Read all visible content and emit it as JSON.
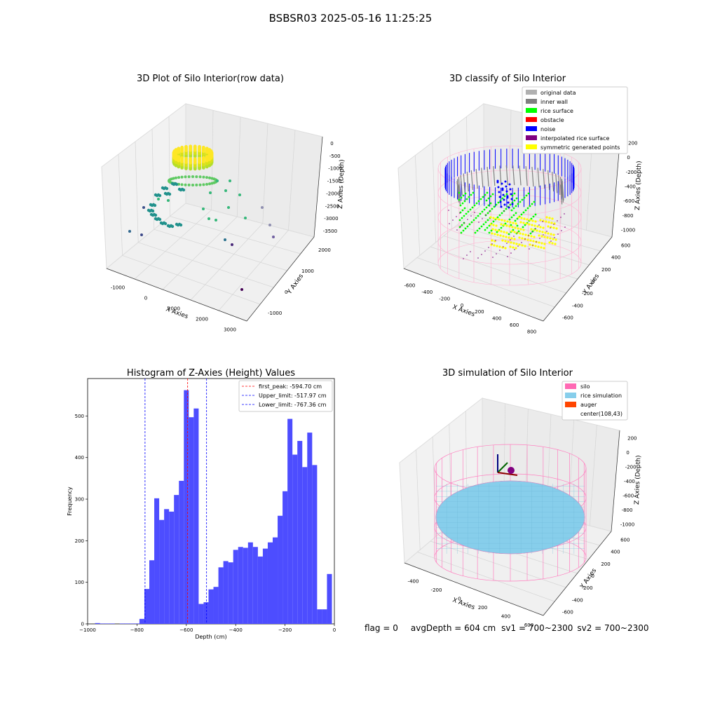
{
  "suptitle": "BSBSR03 2025-05-16 11:25:25",
  "chart_data": [
    {
      "type": "scatter",
      "projection": "3d",
      "title": "3D Plot of Silo Interior(row data)",
      "xlabel": "X Axies",
      "ylabel": "Y Axies",
      "zlabel": "Z Axies (Depth)",
      "x_ticks": [
        "-1000",
        "0",
        "1000",
        "2000",
        "3000"
      ],
      "y_ticks": [
        "-1000",
        "0",
        "1000",
        "2000"
      ],
      "z_ticks": [
        "0",
        "-500",
        "-1000",
        "-1500",
        "-2000",
        "-2500",
        "-3000",
        "-3500"
      ],
      "colormap": "viridis"
    },
    {
      "type": "scatter",
      "projection": "3d",
      "title": "3D classify of Silo Interior",
      "xlabel": "X Axies",
      "ylabel": "Y Axies",
      "zlabel": "Z Axies (Depth)",
      "x_ticks": [
        "-600",
        "-400",
        "-200",
        "0",
        "200",
        "400",
        "600",
        "800"
      ],
      "y_ticks": [
        "-600",
        "-400",
        "-200",
        "0",
        "200",
        "400",
        "600"
      ],
      "z_ticks": [
        "200",
        "0",
        "-200",
        "-400",
        "-600",
        "-800",
        "-1000"
      ],
      "legend_position": "top-right",
      "legend": [
        {
          "label": "original data",
          "color": "#b0b0b0"
        },
        {
          "label": "inner wall",
          "color": "#808080"
        },
        {
          "label": "rice surface",
          "color": "#00ff00"
        },
        {
          "label": "obstacle",
          "color": "#ff0000"
        },
        {
          "label": "noise",
          "color": "#0000ff"
        },
        {
          "label": "interpolated rice surface",
          "color": "#800080"
        },
        {
          "label": "symmetric generated points",
          "color": "#ffff00"
        }
      ]
    },
    {
      "type": "bar",
      "title": "Histogram of Z-Axies (Height) Values",
      "xlabel": "Depth (cm)",
      "ylabel": "Frequency",
      "xlim": [
        -1000,
        0
      ],
      "ylim": [
        0,
        590
      ],
      "x_ticks": [
        -1000,
        -800,
        -600,
        -400,
        -200,
        0
      ],
      "y_ticks": [
        0,
        100,
        200,
        300,
        400,
        500
      ],
      "bin_width": 20,
      "bar_color": "#4d4dff",
      "bins": [
        {
          "x": -960,
          "count": 2
        },
        {
          "x": -940,
          "count": 1
        },
        {
          "x": -920,
          "count": 1
        },
        {
          "x": -900,
          "count": 1
        },
        {
          "x": -860,
          "count": 1
        },
        {
          "x": -840,
          "count": 1
        },
        {
          "x": -820,
          "count": 1
        },
        {
          "x": -800,
          "count": 1
        },
        {
          "x": -780,
          "count": 12
        },
        {
          "x": -760,
          "count": 84
        },
        {
          "x": -740,
          "count": 153
        },
        {
          "x": -720,
          "count": 302
        },
        {
          "x": -700,
          "count": 250
        },
        {
          "x": -680,
          "count": 276
        },
        {
          "x": -660,
          "count": 270
        },
        {
          "x": -640,
          "count": 310
        },
        {
          "x": -620,
          "count": 344
        },
        {
          "x": -600,
          "count": 562
        },
        {
          "x": -580,
          "count": 497
        },
        {
          "x": -560,
          "count": 518
        },
        {
          "x": -540,
          "count": 48
        },
        {
          "x": -520,
          "count": 52
        },
        {
          "x": -500,
          "count": 83
        },
        {
          "x": -480,
          "count": 89
        },
        {
          "x": -460,
          "count": 136
        },
        {
          "x": -440,
          "count": 151
        },
        {
          "x": -420,
          "count": 148
        },
        {
          "x": -400,
          "count": 178
        },
        {
          "x": -380,
          "count": 185
        },
        {
          "x": -360,
          "count": 183
        },
        {
          "x": -340,
          "count": 196
        },
        {
          "x": -320,
          "count": 185
        },
        {
          "x": -300,
          "count": 162
        },
        {
          "x": -280,
          "count": 181
        },
        {
          "x": -260,
          "count": 196
        },
        {
          "x": -240,
          "count": 208
        },
        {
          "x": -220,
          "count": 260
        },
        {
          "x": -200,
          "count": 319
        },
        {
          "x": -180,
          "count": 493
        },
        {
          "x": -160,
          "count": 407
        },
        {
          "x": -140,
          "count": 440
        },
        {
          "x": -120,
          "count": 377
        },
        {
          "x": -100,
          "count": 460
        },
        {
          "x": -80,
          "count": 382
        },
        {
          "x": -60,
          "count": 35
        },
        {
          "x": -40,
          "count": 35
        },
        {
          "x": -20,
          "count": 120
        }
      ],
      "vlines": [
        {
          "label": "first_peak: -594.70 cm",
          "x": -594.7,
          "color": "#ff0000"
        },
        {
          "label": "Upper_limit: -517.97 cm",
          "x": -517.97,
          "color": "#0000ff"
        },
        {
          "label": "Lower_limit: -767.36 cm",
          "x": -767.36,
          "color": "#0000ff"
        }
      ],
      "legend_position": "top-right"
    },
    {
      "type": "surface",
      "projection": "3d",
      "title": "3D simulation of Silo Interior",
      "xlabel": "X Axies",
      "ylabel": "Y Axies",
      "zlabel": "Z Axies (Depth)",
      "x_ticks": [
        "-400",
        "-200",
        "0",
        "200",
        "400",
        "600"
      ],
      "y_ticks": [
        "-600",
        "-400",
        "-200",
        "0",
        "200",
        "400",
        "600"
      ],
      "z_ticks": [
        "200",
        "0",
        "-200",
        "-400",
        "-600",
        "-800",
        "-1000"
      ],
      "legend_position": "top-right",
      "legend": [
        {
          "label": "silo",
          "color": "#ff69b4"
        },
        {
          "label": "rice simulation",
          "color": "#87ceeb"
        },
        {
          "label": "auger",
          "color": "#ff4500"
        },
        {
          "label": "center(108,43)",
          "color": ""
        }
      ]
    }
  ],
  "footer": {
    "flag": "flag = 0",
    "avg_depth": "avgDepth = 604 cm",
    "sv1": "sv1 = 700~2300",
    "sv2": "sv2 = 700~2300"
  }
}
